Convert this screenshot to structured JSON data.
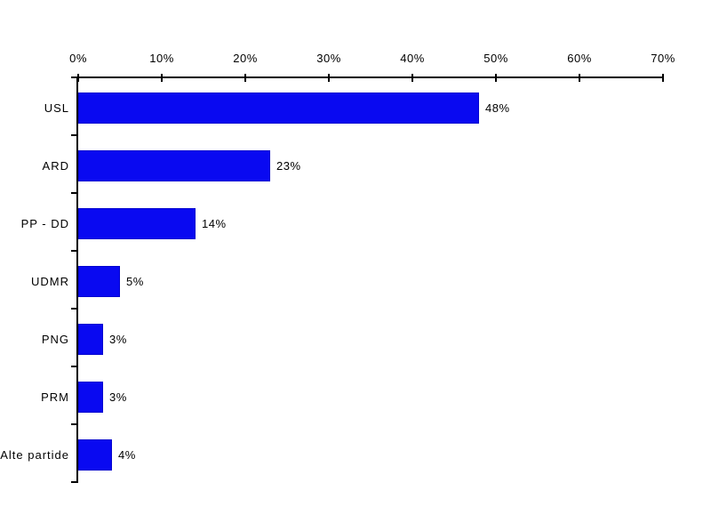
{
  "window": {
    "background_color": "#ffffff",
    "text_color": "#000000",
    "axis_color": "#000000"
  },
  "chart_data": {
    "type": "bar",
    "orientation": "horizontal",
    "title": "",
    "xlabel": "",
    "ylabel": "",
    "categories": [
      "USL",
      "ARD",
      "PP - DD",
      "UDMR",
      "PNG",
      "PRM",
      "Alte partide"
    ],
    "values": [
      48,
      23,
      14,
      5,
      3,
      3,
      4
    ],
    "value_labels": [
      "48%",
      "23%",
      "14%",
      "5%",
      "3%",
      "3%",
      "4%"
    ],
    "bar_color": "#0909f1",
    "x_axis": {
      "position": "top",
      "min": 0,
      "max": 70,
      "tick_step": 10,
      "tick_values": [
        0,
        10,
        20,
        30,
        40,
        50,
        60,
        70
      ],
      "tick_labels": [
        "0%",
        "10%",
        "20%",
        "30%",
        "40%",
        "50%",
        "60%",
        "70%"
      ]
    },
    "grid": false,
    "legend": false,
    "data_labels_shown": true
  }
}
